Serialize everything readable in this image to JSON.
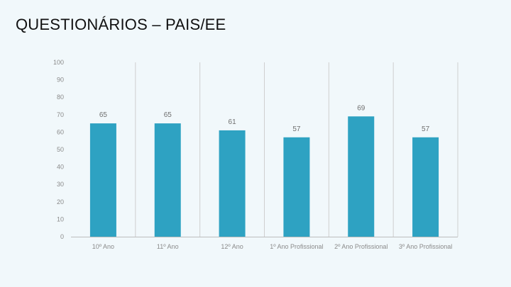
{
  "slide": {
    "title": "QUESTIONÁRIOS – PAIS/EE"
  },
  "chart_data": {
    "type": "bar",
    "categories": [
      "10º Ano",
      "11º Ano",
      "12º Ano",
      "1º Ano Profissional",
      "2º Ano Profissional",
      "3º Ano Profissional"
    ],
    "values": [
      65,
      65,
      61,
      57,
      69,
      57
    ],
    "ylim": [
      0,
      100
    ],
    "yticks": [
      0,
      10,
      20,
      30,
      40,
      50,
      60,
      70,
      80,
      90,
      100
    ],
    "grid": "vertical separators",
    "legend": "none",
    "colors": {
      "bar": "#2ea2c2",
      "separator": "#cfcfcf",
      "axis": "#bdbdbd"
    }
  }
}
